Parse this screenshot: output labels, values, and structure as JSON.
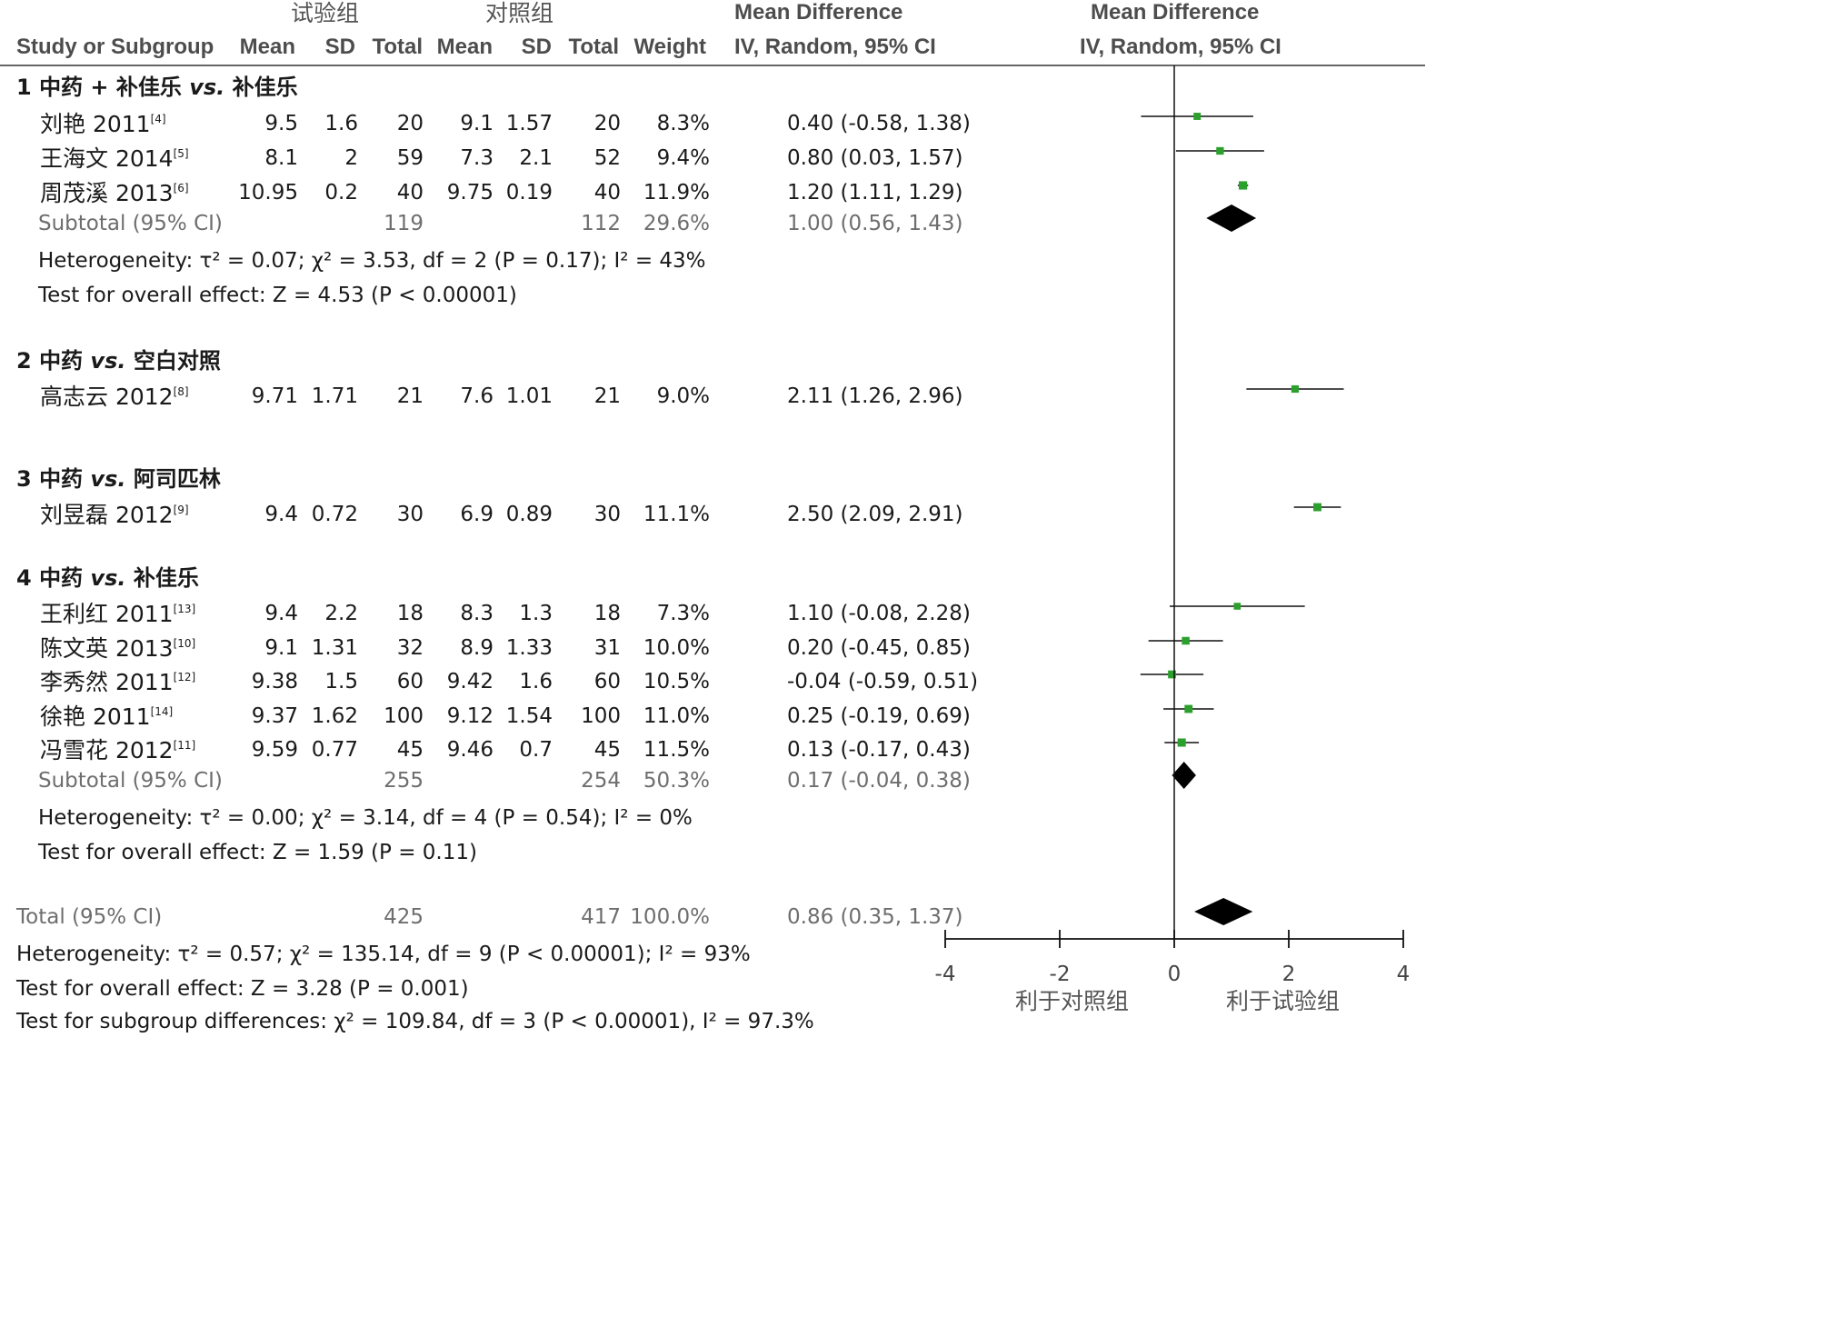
{
  "header": {
    "exp_group": "试验组",
    "ctrl_group": "对照组",
    "md_col1": "Mean Difference",
    "md_col2": "Mean Difference",
    "study": "Study or Subgroup",
    "mean1": "Mean",
    "sd1": "SD",
    "total1": "Total",
    "mean2": "Mean",
    "sd2": "SD",
    "total2": "Total",
    "weight": "Weight",
    "method1": "IV, Random, 95% CI",
    "method2": "IV, Random, 95% CI"
  },
  "chart_data": {
    "type": "forest",
    "xlim": [
      -4,
      4
    ],
    "xticks": [
      -4,
      -2,
      0,
      2,
      4
    ],
    "xtick_labels": [
      "-4",
      "-2",
      "0",
      "2",
      "4"
    ],
    "favours_left": "利于对照组",
    "favours_right": "利于试验组",
    "marker_color": "#2ca02c",
    "diamond_color": "#000000",
    "subgroups": [
      {
        "num": "1",
        "p1": "中药 + 补佳乐 ",
        "vs": "vs.",
        "p2": " 补佳乐",
        "studies": [
          {
            "name": "刘艳 2011",
            "ref": "[4]",
            "m1": "9.5",
            "sd1": "1.6",
            "n1": "20",
            "m2": "9.1",
            "sd2": "1.57",
            "n2": "20",
            "w": "8.3%",
            "ci": "0.40 (-0.58, 1.38)",
            "md": 0.4,
            "lo": -0.58,
            "hi": 1.38
          },
          {
            "name": "王海文 2014",
            "ref": "[5]",
            "m1": "8.1",
            "sd1": "2",
            "n1": "59",
            "m2": "7.3",
            "sd2": "2.1",
            "n2": "52",
            "w": "9.4%",
            "ci": "0.80 (0.03, 1.57)",
            "md": 0.8,
            "lo": 0.03,
            "hi": 1.57
          },
          {
            "name": "周茂溪 2013",
            "ref": "[6]",
            "m1": "10.95",
            "sd1": "0.2",
            "n1": "40",
            "m2": "9.75",
            "sd2": "0.19",
            "n2": "40",
            "w": "11.9%",
            "ci": "1.20 (1.11, 1.29)",
            "md": 1.2,
            "lo": 1.11,
            "hi": 1.29
          }
        ],
        "subtotal": {
          "label": "Subtotal (95% CI)",
          "n1": "119",
          "n2": "112",
          "w": "29.6%",
          "ci": "1.00 (0.56, 1.43)",
          "md": 1.0,
          "lo": 0.56,
          "hi": 1.43
        },
        "het": "Heterogeneity: τ² = 0.07; χ² = 3.53, df = 2 (P = 0.17); I² = 43%",
        "overall": "Test for overall effect: Z = 4.53 (P < 0.00001)"
      },
      {
        "num": "2",
        "p1": "中药 ",
        "vs": "vs.",
        "p2": " 空白对照",
        "studies": [
          {
            "name": "高志云 2012",
            "ref": "[8]",
            "m1": "9.71",
            "sd1": "1.71",
            "n1": "21",
            "m2": "7.6",
            "sd2": "1.01",
            "n2": "21",
            "w": "9.0%",
            "ci": "2.11 (1.26, 2.96)",
            "md": 2.11,
            "lo": 1.26,
            "hi": 2.96
          }
        ]
      },
      {
        "num": "3",
        "p1": "中药 ",
        "vs": "vs.",
        "p2": " 阿司匹林",
        "studies": [
          {
            "name": "刘昱磊 2012",
            "ref": "[9]",
            "m1": "9.4",
            "sd1": "0.72",
            "n1": "30",
            "m2": "6.9",
            "sd2": "0.89",
            "n2": "30",
            "w": "11.1%",
            "ci": "2.50 (2.09, 2.91)",
            "md": 2.5,
            "lo": 2.09,
            "hi": 2.91
          }
        ]
      },
      {
        "num": "4",
        "p1": "中药 ",
        "vs": "vs.",
        "p2": " 补佳乐",
        "studies": [
          {
            "name": "王利红 2011",
            "ref": "[13]",
            "m1": "9.4",
            "sd1": "2.2",
            "n1": "18",
            "m2": "8.3",
            "sd2": "1.3",
            "n2": "18",
            "w": "7.3%",
            "ci": "1.10 (-0.08, 2.28)",
            "md": 1.1,
            "lo": -0.08,
            "hi": 2.28
          },
          {
            "name": "陈文英 2013",
            "ref": "[10]",
            "m1": "9.1",
            "sd1": "1.31",
            "n1": "32",
            "m2": "8.9",
            "sd2": "1.33",
            "n2": "31",
            "w": "10.0%",
            "ci": "0.20 (-0.45, 0.85)",
            "md": 0.2,
            "lo": -0.45,
            "hi": 0.85
          },
          {
            "name": "李秀然 2011",
            "ref": "[12]",
            "m1": "9.38",
            "sd1": "1.5",
            "n1": "60",
            "m2": "9.42",
            "sd2": "1.6",
            "n2": "60",
            "w": "10.5%",
            "ci": "-0.04 (-0.59, 0.51)",
            "md": -0.04,
            "lo": -0.59,
            "hi": 0.51
          },
          {
            "name": "徐艳 2011",
            "ref": "[14]",
            "m1": "9.37",
            "sd1": "1.62",
            "n1": "100",
            "m2": "9.12",
            "sd2": "1.54",
            "n2": "100",
            "w": "11.0%",
            "ci": "0.25 (-0.19, 0.69)",
            "md": 0.25,
            "lo": -0.19,
            "hi": 0.69
          },
          {
            "name": "冯雪花 2012",
            "ref": "[11]",
            "m1": "9.59",
            "sd1": "0.77",
            "n1": "45",
            "m2": "9.46",
            "sd2": "0.7",
            "n2": "45",
            "w": "11.5%",
            "ci": "0.13 (-0.17, 0.43)",
            "md": 0.13,
            "lo": -0.17,
            "hi": 0.43
          }
        ],
        "subtotal": {
          "label": "Subtotal (95% CI)",
          "n1": "255",
          "n2": "254",
          "w": "50.3%",
          "ci": "0.17 (-0.04, 0.38)",
          "md": 0.17,
          "lo": -0.04,
          "hi": 0.38
        },
        "het": "Heterogeneity: τ² = 0.00; χ² = 3.14, df = 4 (P = 0.54); I² = 0%",
        "overall": "Test for overall effect: Z = 1.59 (P = 0.11)"
      }
    ],
    "total": {
      "label": "Total (95% CI)",
      "n1": "425",
      "n2": "417",
      "w": "100.0%",
      "ci": "0.86 (0.35, 1.37)",
      "md": 0.86,
      "lo": 0.35,
      "hi": 1.37
    },
    "total_het": "Heterogeneity: τ² = 0.57; χ² = 135.14, df = 9 (P < 0.00001); I² = 93%",
    "total_overall": "Test for overall effect: Z = 3.28 (P = 0.001)",
    "subgroup_diff": "Test for subgroup differences: χ² = 109.84, df = 3 (P < 0.00001), I² = 97.3%"
  }
}
